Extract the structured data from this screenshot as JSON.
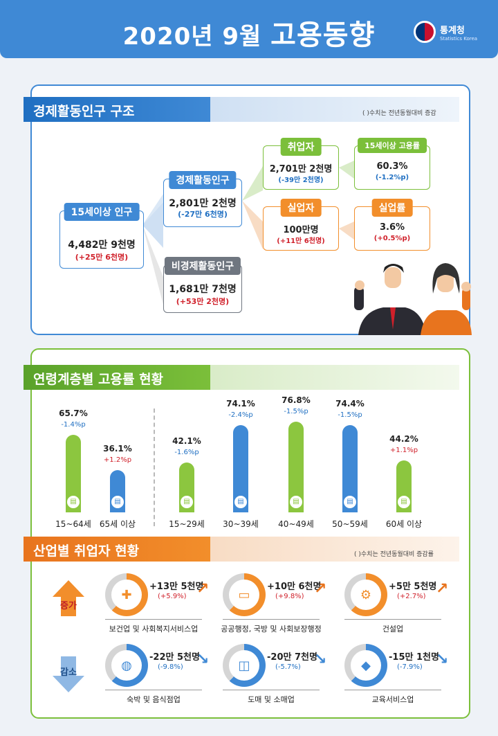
{
  "header": {
    "year": "2020년",
    "month": "9월",
    "title": "고용동향",
    "logo_name": "통계청",
    "logo_sub": "Statistics Korea"
  },
  "structure": {
    "title": "경제활동인구 구조",
    "note": "( )수치는 전년동월대비 증감",
    "pop15": {
      "label": "15세이상 인구",
      "value": "4,482만 9천명",
      "change": "(+25만 6천명)"
    },
    "active": {
      "label": "경제활동인구",
      "value": "2,801만 2천명",
      "change": "(-27만 6천명)"
    },
    "inactive": {
      "label": "비경제활동인구",
      "value": "1,681만 7천명",
      "change": "(+53만 2천명)"
    },
    "employed": {
      "label": "취업자",
      "value": "2,701만 2천명",
      "change": "(-39만 2천명)"
    },
    "emp_rate": {
      "label": "15세이상 고용률",
      "value": "60.3%",
      "change": "(-1.2%p)"
    },
    "unemployed": {
      "label": "실업자",
      "value": "100만명",
      "change": "(+11만 6천명)"
    },
    "unemp_rate": {
      "label": "실업률",
      "value": "3.6%",
      "change": "(+0.5%p)"
    }
  },
  "age": {
    "title": "연령계층별 고용률 현황"
  },
  "chart_data": {
    "type": "bar",
    "title": "연령계층별 고용률 현황",
    "categories": [
      "15~64세",
      "65세 이상",
      "15~29세",
      "30~39세",
      "40~49세",
      "50~59세",
      "60세 이상"
    ],
    "values": [
      65.7,
      36.1,
      42.1,
      74.1,
      76.8,
      74.4,
      44.2
    ],
    "value_labels": [
      "65.7%",
      "36.1%",
      "42.1%",
      "74.1%",
      "76.8%",
      "74.4%",
      "44.2%"
    ],
    "changes": [
      "-1.4%p",
      "+1.2%p",
      "-1.6%p",
      "-2.4%p",
      "-1.5%p",
      "-1.5%p",
      "+1.1%p"
    ],
    "colors": [
      "#8cc63f",
      "#3f89d5",
      "#8cc63f",
      "#3f89d5",
      "#8cc63f",
      "#3f89d5",
      "#8cc63f"
    ],
    "ylim": [
      0,
      100
    ]
  },
  "industry": {
    "title": "산업별 취업자 현황",
    "note": "( )수치는 전년동월대비 증감률",
    "increase_label": "증가",
    "decrease_label": "감소",
    "increase": [
      {
        "name": "보건업 및 사회복지서비스업",
        "value": "+13만 5천명",
        "change": "(+5.9%)",
        "icon": "first-aid-icon"
      },
      {
        "name": "공공행정, 국방 및 사회보장행정",
        "value": "+10만 6천명",
        "change": "(+9.8%)",
        "icon": "scroll-icon"
      },
      {
        "name": "건설업",
        "value": "+5만 5천명",
        "change": "(+2.7%)",
        "icon": "excavator-icon"
      }
    ],
    "decrease": [
      {
        "name": "숙박 및 음식점업",
        "value": "-22만 5천명",
        "change": "(-9.8%)",
        "icon": "plate-icon"
      },
      {
        "name": "도매 및 소매업",
        "value": "-20만 7천명",
        "change": "(-5.7%)",
        "icon": "basket-icon"
      },
      {
        "name": "교육서비스업",
        "value": "-15만 1천명",
        "change": "(-7.9%)",
        "icon": "graduation-cap-icon"
      }
    ]
  }
}
